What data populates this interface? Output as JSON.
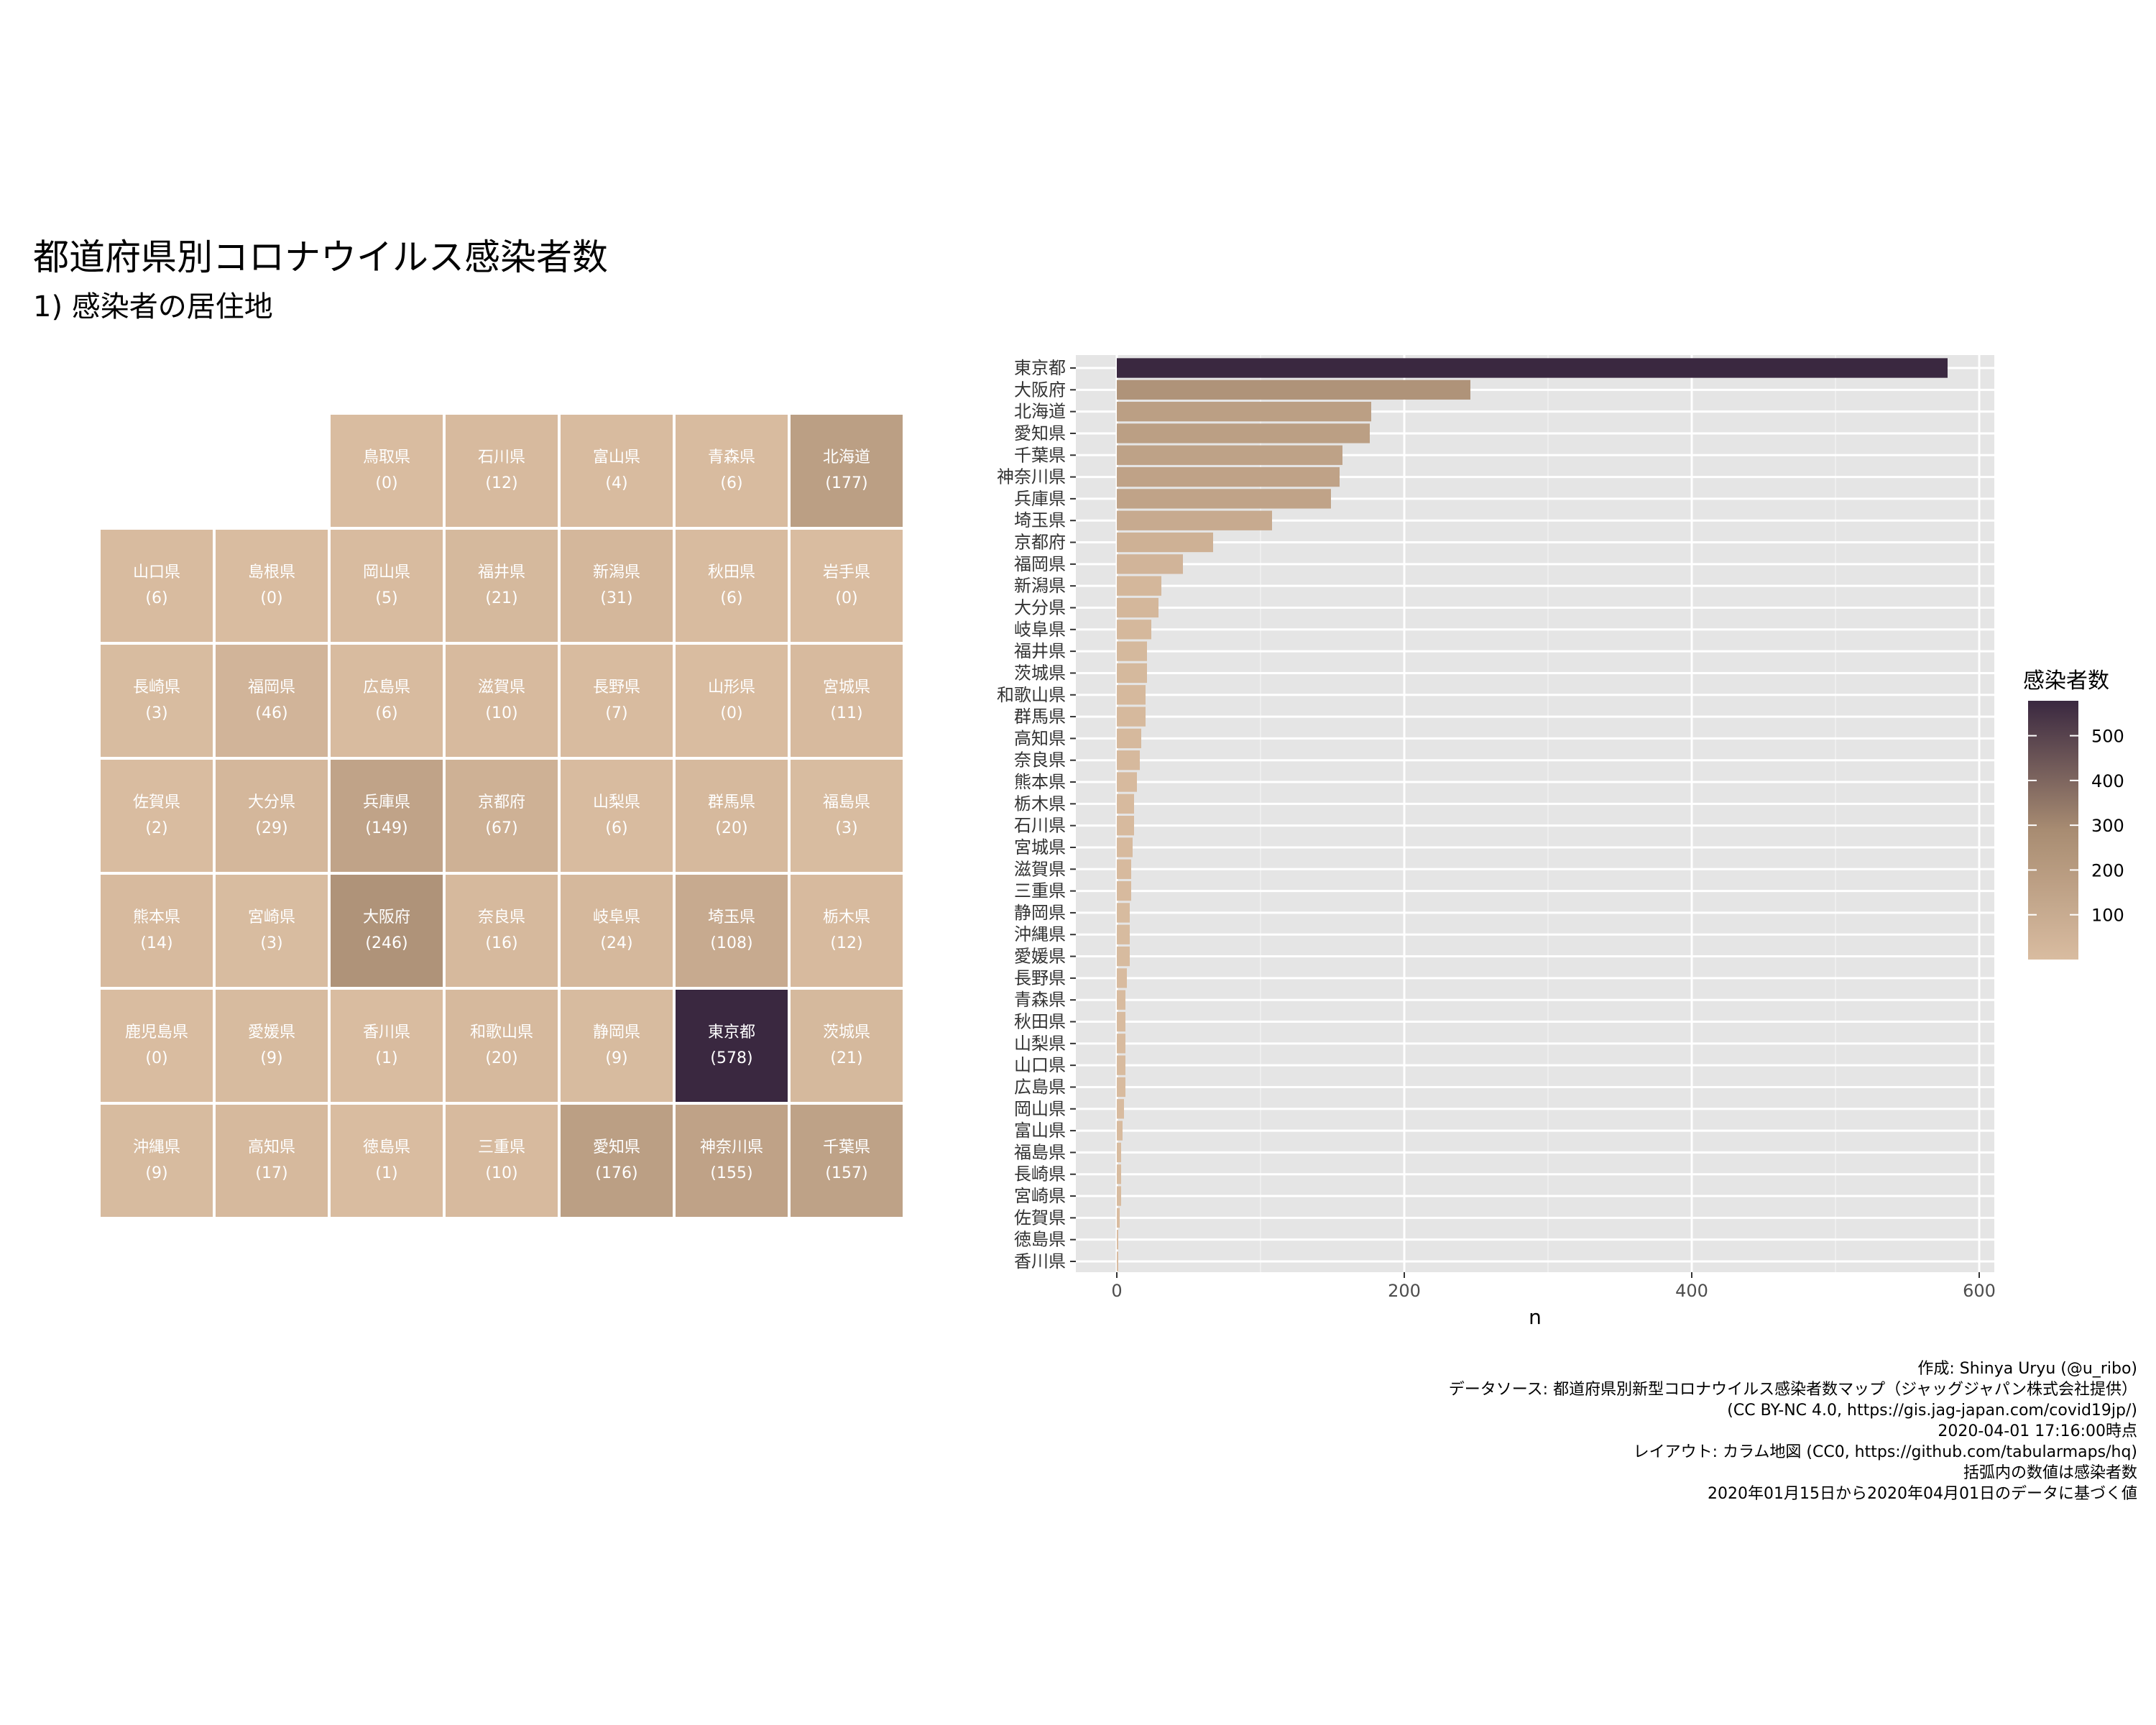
{
  "title": "都道府県別コロナウイルス感染者数",
  "subtitle": "1) 感染者の居住地",
  "legend": {
    "title": "感染者数",
    "breaks": [
      100,
      200,
      300,
      400,
      500
    ],
    "min": 0,
    "max": 578
  },
  "colors": {
    "low": "#d9bca0",
    "mid": "#a88c72",
    "high": "#3a2840",
    "panel_bg": "#e5e5e5",
    "grid": "#ffffff"
  },
  "tile_map": {
    "cols": 7,
    "rows": 7,
    "tiles": [
      {
        "name": "鳥取県",
        "label": "(0)",
        "n": 0,
        "col": 2,
        "row": 0
      },
      {
        "name": "石川県",
        "label": "(12)",
        "n": 12,
        "col": 3,
        "row": 0
      },
      {
        "name": "富山県",
        "label": "(4)",
        "n": 4,
        "col": 4,
        "row": 0
      },
      {
        "name": "青森県",
        "label": "(6)",
        "n": 6,
        "col": 5,
        "row": 0
      },
      {
        "name": "北海道",
        "label": "(177)",
        "n": 177,
        "col": 6,
        "row": 0
      },
      {
        "name": "山口県",
        "label": "(6)",
        "n": 6,
        "col": 0,
        "row": 1
      },
      {
        "name": "島根県",
        "label": "(0)",
        "n": 0,
        "col": 1,
        "row": 1
      },
      {
        "name": "岡山県",
        "label": "(5)",
        "n": 5,
        "col": 2,
        "row": 1
      },
      {
        "name": "福井県",
        "label": "(21)",
        "n": 21,
        "col": 3,
        "row": 1
      },
      {
        "name": "新潟県",
        "label": "(31)",
        "n": 31,
        "col": 4,
        "row": 1
      },
      {
        "name": "秋田県",
        "label": "(6)",
        "n": 6,
        "col": 5,
        "row": 1
      },
      {
        "name": "岩手県",
        "label": "(0)",
        "n": 0,
        "col": 6,
        "row": 1
      },
      {
        "name": "長崎県",
        "label": "(3)",
        "n": 3,
        "col": 0,
        "row": 2
      },
      {
        "name": "福岡県",
        "label": "(46)",
        "n": 46,
        "col": 1,
        "row": 2
      },
      {
        "name": "広島県",
        "label": "(6)",
        "n": 6,
        "col": 2,
        "row": 2
      },
      {
        "name": "滋賀県",
        "label": "(10)",
        "n": 10,
        "col": 3,
        "row": 2
      },
      {
        "name": "長野県",
        "label": "(7)",
        "n": 7,
        "col": 4,
        "row": 2
      },
      {
        "name": "山形県",
        "label": "(0)",
        "n": 0,
        "col": 5,
        "row": 2
      },
      {
        "name": "宮城県",
        "label": "(11)",
        "n": 11,
        "col": 6,
        "row": 2
      },
      {
        "name": "佐賀県",
        "label": "(2)",
        "n": 2,
        "col": 0,
        "row": 3
      },
      {
        "name": "大分県",
        "label": "(29)",
        "n": 29,
        "col": 1,
        "row": 3
      },
      {
        "name": "兵庫県",
        "label": "(149)",
        "n": 149,
        "col": 2,
        "row": 3
      },
      {
        "name": "京都府",
        "label": "(67)",
        "n": 67,
        "col": 3,
        "row": 3
      },
      {
        "name": "山梨県",
        "label": "(6)",
        "n": 6,
        "col": 4,
        "row": 3
      },
      {
        "name": "群馬県",
        "label": "(20)",
        "n": 20,
        "col": 5,
        "row": 3
      },
      {
        "name": "福島県",
        "label": "(3)",
        "n": 3,
        "col": 6,
        "row": 3
      },
      {
        "name": "熊本県",
        "label": "(14)",
        "n": 14,
        "col": 0,
        "row": 4
      },
      {
        "name": "宮崎県",
        "label": "(3)",
        "n": 3,
        "col": 1,
        "row": 4
      },
      {
        "name": "大阪府",
        "label": "(246)",
        "n": 246,
        "col": 2,
        "row": 4
      },
      {
        "name": "奈良県",
        "label": "(16)",
        "n": 16,
        "col": 3,
        "row": 4
      },
      {
        "name": "岐阜県",
        "label": "(24)",
        "n": 24,
        "col": 4,
        "row": 4
      },
      {
        "name": "埼玉県",
        "label": "(108)",
        "n": 108,
        "col": 5,
        "row": 4
      },
      {
        "name": "栃木県",
        "label": "(12)",
        "n": 12,
        "col": 6,
        "row": 4
      },
      {
        "name": "鹿児島県",
        "label": "(0)",
        "n": 0,
        "col": 0,
        "row": 5
      },
      {
        "name": "愛媛県",
        "label": "(9)",
        "n": 9,
        "col": 1,
        "row": 5
      },
      {
        "name": "香川県",
        "label": "(1)",
        "n": 1,
        "col": 2,
        "row": 5
      },
      {
        "name": "和歌山県",
        "label": "(20)",
        "n": 20,
        "col": 3,
        "row": 5
      },
      {
        "name": "静岡県",
        "label": "(9)",
        "n": 9,
        "col": 4,
        "row": 5
      },
      {
        "name": "東京都",
        "label": "(578)",
        "n": 578,
        "col": 5,
        "row": 5
      },
      {
        "name": "茨城県",
        "label": "(21)",
        "n": 21,
        "col": 6,
        "row": 5
      },
      {
        "name": "沖縄県",
        "label": "(9)",
        "n": 9,
        "col": 0,
        "row": 6
      },
      {
        "name": "高知県",
        "label": "(17)",
        "n": 17,
        "col": 1,
        "row": 6
      },
      {
        "name": "徳島県",
        "label": "(1)",
        "n": 1,
        "col": 2,
        "row": 6
      },
      {
        "name": "三重県",
        "label": "(10)",
        "n": 10,
        "col": 3,
        "row": 6
      },
      {
        "name": "愛知県",
        "label": "(176)",
        "n": 176,
        "col": 4,
        "row": 6
      },
      {
        "name": "神奈川県",
        "label": "(155)",
        "n": 155,
        "col": 5,
        "row": 6
      },
      {
        "name": "千葉県",
        "label": "(157)",
        "n": 157,
        "col": 6,
        "row": 6
      }
    ]
  },
  "chart_data": {
    "type": "bar",
    "orientation": "horizontal",
    "xlabel": "n",
    "ylabel": "",
    "xlim": [
      0,
      600
    ],
    "xticks": [
      0,
      200,
      400,
      600
    ],
    "categories": [
      "東京都",
      "大阪府",
      "北海道",
      "愛知県",
      "千葉県",
      "神奈川県",
      "兵庫県",
      "埼玉県",
      "京都府",
      "福岡県",
      "新潟県",
      "大分県",
      "岐阜県",
      "福井県",
      "茨城県",
      "和歌山県",
      "群馬県",
      "高知県",
      "奈良県",
      "熊本県",
      "栃木県",
      "石川県",
      "宮城県",
      "滋賀県",
      "三重県",
      "静岡県",
      "沖縄県",
      "愛媛県",
      "長野県",
      "青森県",
      "秋田県",
      "山梨県",
      "山口県",
      "広島県",
      "岡山県",
      "富山県",
      "福島県",
      "長崎県",
      "宮崎県",
      "佐賀県",
      "徳島県",
      "香川県"
    ],
    "values": [
      578,
      246,
      177,
      176,
      157,
      155,
      149,
      108,
      67,
      46,
      31,
      29,
      24,
      21,
      21,
      20,
      20,
      17,
      16,
      14,
      12,
      12,
      11,
      10,
      10,
      9,
      9,
      9,
      7,
      6,
      6,
      6,
      6,
      6,
      5,
      4,
      3,
      3,
      3,
      2,
      1,
      1
    ]
  },
  "caption": [
    "作成: Shinya Uryu (@u_ribo)",
    "データソース: 都道府県別新型コロナウイルス感染者数マップ（ジャッグジャパン株式会社提供）",
    "(CC BY-NC 4.0, https://gis.jag-japan.com/covid19jp/)",
    "2020-04-01 17:16:00時点",
    "レイアウト: カラム地図 (CC0, https://github.com/tabularmaps/hq)",
    "括弧内の数値は感染者数",
    "2020年01月15日から2020年04月01日のデータに基づく値"
  ]
}
